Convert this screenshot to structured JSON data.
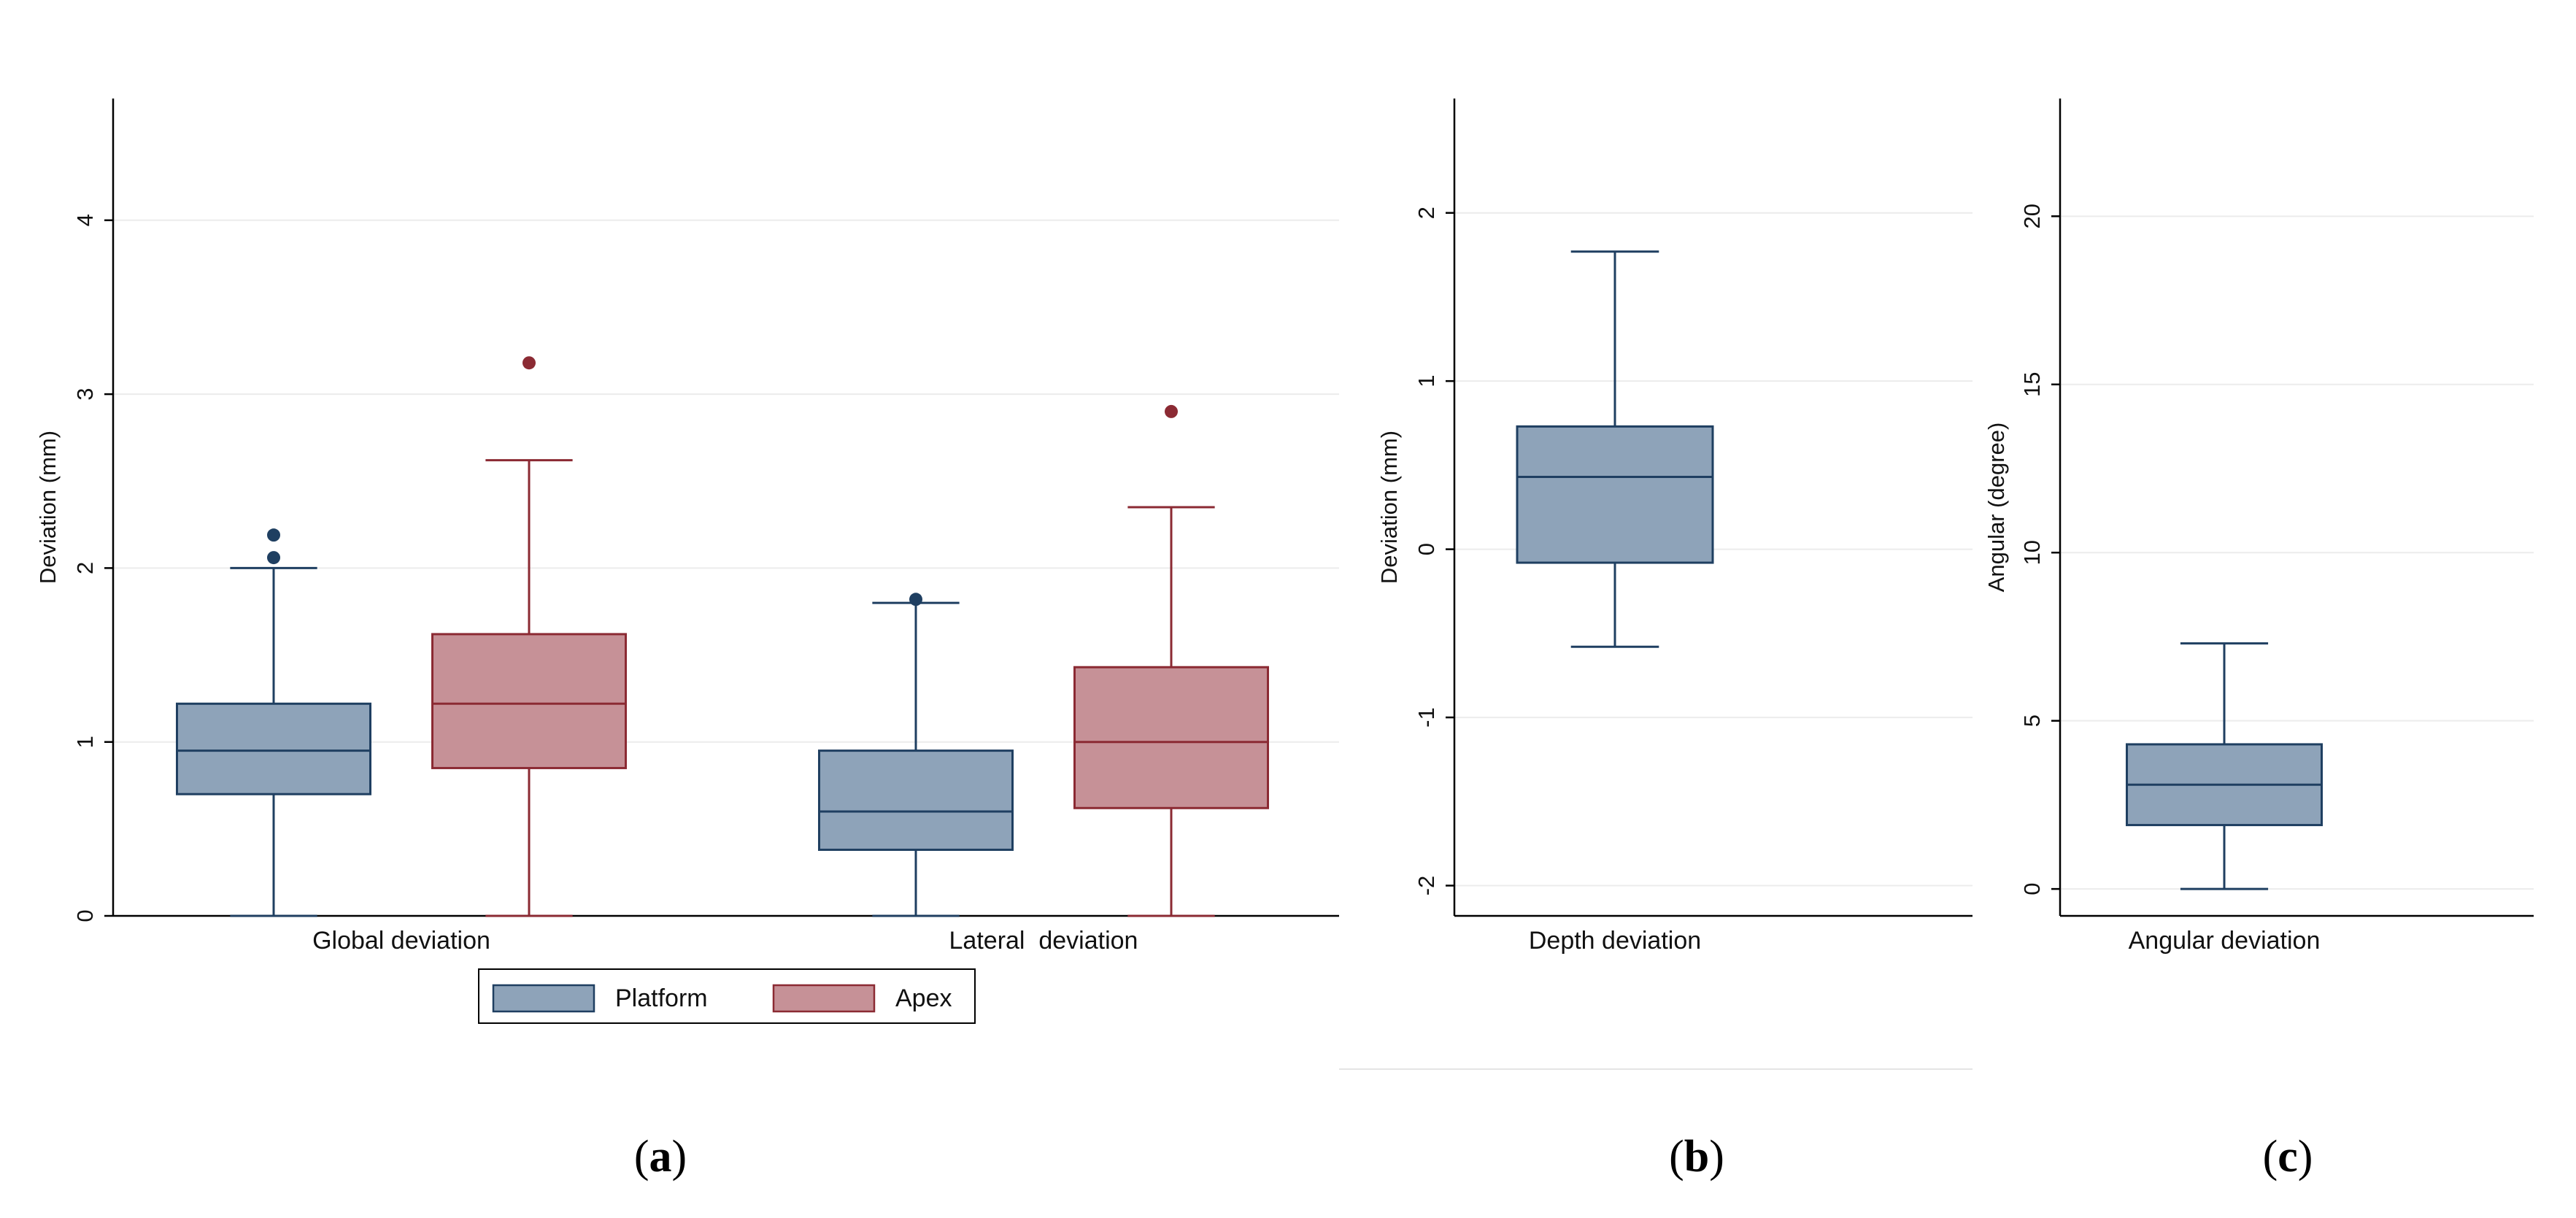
{
  "chart_data": [
    {
      "id": "a",
      "type": "box",
      "panel_label": "a",
      "ylabel": "Deviation (mm)",
      "ylim": [
        0,
        4.7
      ],
      "yticks": [
        0,
        1,
        2,
        3,
        4
      ],
      "categories": [
        "Global deviation",
        "Lateral  deviation"
      ],
      "series": [
        {
          "name": "Platform",
          "fill": "#8ea3b9",
          "stroke": "#1f3f61",
          "boxes": [
            {
              "min": 0,
              "q1": 0.7,
              "median": 0.95,
              "q3": 1.22,
              "max": 2.0,
              "outliers": [
                2.06,
                2.19
              ]
            },
            {
              "min": 0,
              "q1": 0.38,
              "median": 0.6,
              "q3": 0.95,
              "max": 1.8,
              "outliers": [
                1.82
              ]
            }
          ]
        },
        {
          "name": "Apex",
          "fill": "#c69197",
          "stroke": "#8b2a33",
          "boxes": [
            {
              "min": 0,
              "q1": 0.85,
              "median": 1.22,
              "q3": 1.62,
              "max": 2.62,
              "outliers": [
                3.18
              ]
            },
            {
              "min": 0,
              "q1": 0.62,
              "median": 1.0,
              "q3": 1.43,
              "max": 2.35,
              "outliers": [
                2.9
              ]
            }
          ]
        }
      ],
      "legend": [
        "Platform",
        "Apex"
      ]
    },
    {
      "id": "b",
      "type": "box",
      "panel_label": "b",
      "ylabel": "Deviation (mm)",
      "ylim": [
        -2.18,
        2.68
      ],
      "yticks": [
        -2,
        -1,
        0,
        1,
        2
      ],
      "categories": [
        "Depth deviation"
      ],
      "series": [
        {
          "name": "Depth",
          "fill": "#8ea3b9",
          "stroke": "#1f3f61",
          "boxes": [
            {
              "min": -0.58,
              "q1": -0.08,
              "median": 0.43,
              "q3": 0.73,
              "max": 1.77,
              "outliers": []
            }
          ]
        }
      ]
    },
    {
      "id": "c",
      "type": "box",
      "panel_label": "c",
      "ylabel": "Angular (degree)",
      "ylim": [
        -0.8,
        23.5
      ],
      "yticks": [
        0,
        5,
        10,
        15,
        20
      ],
      "categories": [
        "Angular deviation"
      ],
      "series": [
        {
          "name": "Angular",
          "fill": "#8ea3b9",
          "stroke": "#1f3f61",
          "boxes": [
            {
              "min": 0,
              "q1": 1.9,
              "median": 3.1,
              "q3": 4.3,
              "max": 7.3,
              "outliers": []
            }
          ]
        }
      ]
    }
  ]
}
